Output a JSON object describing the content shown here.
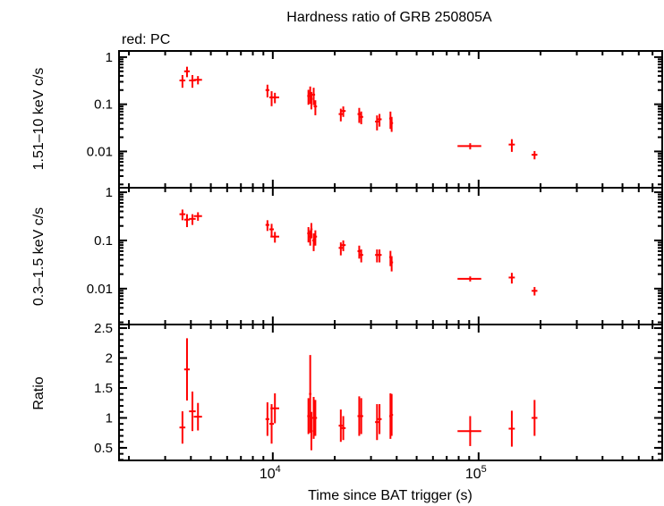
{
  "chart_data": {
    "type": "scatter",
    "title": "Hardness ratio of GRB 250805A",
    "annotation": "red: PC",
    "xlabel": "Time since BAT trigger (s)",
    "xscale": "log",
    "xlim": [
      1790,
      780000
    ],
    "xticks": [
      {
        "v": 10000,
        "base": "10",
        "exp": "4"
      },
      {
        "v": 100000,
        "base": "10",
        "exp": "5"
      }
    ],
    "series_color": "#ff0000",
    "x": [
      3640,
      3830,
      4070,
      4330,
      9420,
      9870,
      10240,
      14900,
      15200,
      15400,
      15800,
      16100,
      21400,
      22000,
      26300,
      26900,
      32100,
      33000,
      37300,
      37800,
      91000,
      145000,
      187000
    ],
    "xerr": [
      120,
      120,
      150,
      200,
      200,
      250,
      500,
      200,
      200,
      200,
      250,
      300,
      500,
      600,
      500,
      600,
      700,
      800,
      500,
      600,
      12000,
      5000,
      6000
    ],
    "panels": [
      {
        "ylabel": "1.51–10 keV c/s",
        "yscale": "log",
        "ylim": [
          0.0017,
          1.35
        ],
        "yticks": [
          {
            "v": 1,
            "label": "1"
          },
          {
            "v": 0.1,
            "label": "0.1"
          },
          {
            "v": 0.01,
            "label": "0.01"
          }
        ],
        "y": [
          0.32,
          0.5,
          0.32,
          0.33,
          0.2,
          0.14,
          0.14,
          0.15,
          0.17,
          0.13,
          0.16,
          0.09,
          0.062,
          0.072,
          0.062,
          0.054,
          0.043,
          0.048,
          0.05,
          0.04,
          0.013,
          0.014,
          0.0085
        ],
        "yerr_frac": [
          0.3,
          0.25,
          0.3,
          0.2,
          0.3,
          0.35,
          0.25,
          0.35,
          0.4,
          0.4,
          0.4,
          0.35,
          0.3,
          0.25,
          0.35,
          0.3,
          0.35,
          0.3,
          0.4,
          0.35,
          0.15,
          0.3,
          0.2
        ]
      },
      {
        "ylabel": "0.3–1.5 keV c/s",
        "yscale": "log",
        "ylim": [
          0.0018,
          1.24
        ],
        "yticks": [
          {
            "v": 1,
            "label": "1"
          },
          {
            "v": 0.1,
            "label": "0.1"
          },
          {
            "v": 0.01,
            "label": "0.01"
          }
        ],
        "y": [
          0.35,
          0.27,
          0.28,
          0.32,
          0.21,
          0.17,
          0.12,
          0.14,
          0.12,
          0.17,
          0.1,
          0.12,
          0.07,
          0.08,
          0.06,
          0.05,
          0.05,
          0.05,
          0.045,
          0.035,
          0.016,
          0.017,
          0.009
        ],
        "yerr_frac": [
          0.25,
          0.3,
          0.25,
          0.2,
          0.25,
          0.3,
          0.25,
          0.35,
          0.35,
          0.35,
          0.4,
          0.35,
          0.3,
          0.25,
          0.3,
          0.3,
          0.3,
          0.3,
          0.35,
          0.35,
          0.12,
          0.25,
          0.2
        ]
      },
      {
        "ylabel": "Ratio",
        "yscale": "linear",
        "ylim": [
          0.29,
          2.56
        ],
        "yticks": [
          {
            "v": 2.5,
            "label": "2.5"
          },
          {
            "v": 2,
            "label": "2"
          },
          {
            "v": 1.5,
            "label": "1.5"
          },
          {
            "v": 1,
            "label": "1"
          },
          {
            "v": 0.5,
            "label": "0.5"
          }
        ],
        "yminor": 0.1,
        "y": [
          0.84,
          1.81,
          1.11,
          1.02,
          0.98,
          0.9,
          1.16,
          1.03,
          1.4,
          0.78,
          1.0,
          1.0,
          0.87,
          0.83,
          1.03,
          1.03,
          0.93,
          0.98,
          1.03,
          1.05
        ],
        "y_tail": [
          0.78,
          0.82,
          1.0
        ],
        "yerr": [
          0.27,
          0.52,
          0.33,
          0.23,
          0.28,
          0.33,
          0.25,
          0.3,
          0.65,
          0.32,
          0.35,
          0.3,
          0.27,
          0.2,
          0.33,
          0.3,
          0.3,
          0.25,
          0.38,
          0.35,
          0.25,
          0.3,
          0.3
        ]
      }
    ]
  }
}
